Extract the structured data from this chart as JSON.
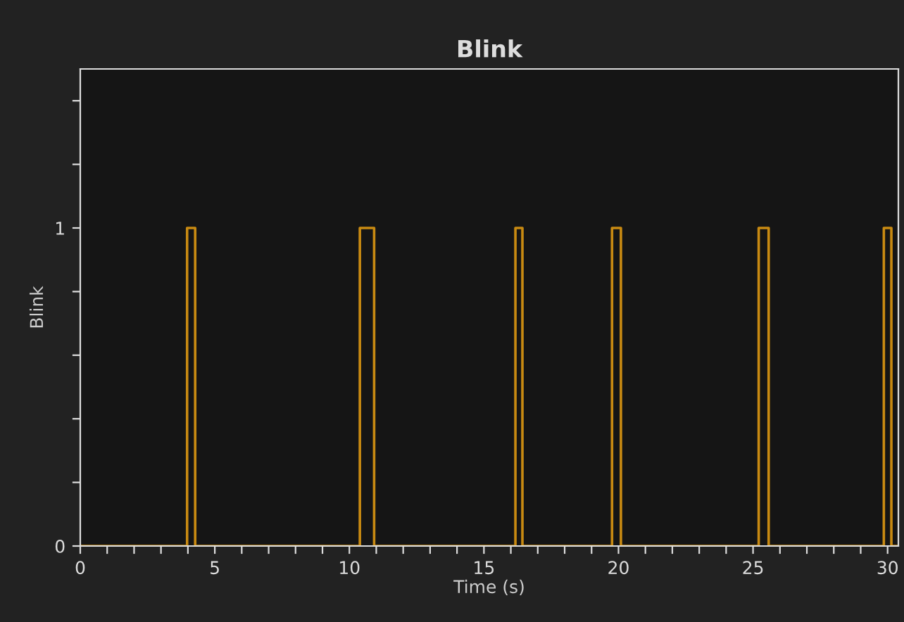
{
  "chart_data": {
    "type": "step",
    "title": "Blink",
    "xlabel": "Time (s)",
    "ylabel": "Blink",
    "x": [
      0,
      3.97,
      4.27,
      10.39,
      10.92,
      16.17,
      16.43,
      19.76,
      20.09,
      25.21,
      25.58,
      29.86,
      30.14,
      30.35
    ],
    "series": [
      {
        "color": "#c88a12",
        "values": [
          0,
          1,
          0,
          1,
          0,
          1,
          0,
          1,
          0,
          1,
          0,
          1,
          0,
          0
        ]
      }
    ],
    "xlim": [
      0,
      30.4
    ],
    "ylim": [
      0,
      1.5
    ],
    "xticks": [
      0,
      {
        "value": 1,
        "label": null
      },
      {
        "value": 2,
        "label": null
      },
      {
        "value": 3,
        "label": null
      },
      {
        "value": 4,
        "label": null
      },
      5,
      {
        "value": 6,
        "label": null
      },
      {
        "value": 7,
        "label": null
      },
      {
        "value": 8,
        "label": null
      },
      {
        "value": 9,
        "label": null
      },
      10,
      {
        "value": 11,
        "label": null
      },
      {
        "value": 12,
        "label": null
      },
      {
        "value": 13,
        "label": null
      },
      {
        "value": 14,
        "label": null
      },
      15,
      {
        "value": 16,
        "label": null
      },
      {
        "value": 17,
        "label": null
      },
      {
        "value": 18,
        "label": null
      },
      {
        "value": 19,
        "label": null
      },
      20,
      {
        "value": 21,
        "label": null
      },
      {
        "value": 22,
        "label": null
      },
      {
        "value": 23,
        "label": null
      },
      {
        "value": 24,
        "label": null
      },
      25,
      {
        "value": 26,
        "label": null
      },
      {
        "value": 27,
        "label": null
      },
      {
        "value": 28,
        "label": null
      },
      {
        "value": 29,
        "label": null
      },
      30
    ],
    "yticks": [
      0,
      {
        "value": 0.2,
        "label": null
      },
      {
        "value": 0.4,
        "label": null
      },
      {
        "value": 0.6,
        "label": null
      },
      {
        "value": 0.8,
        "label": null
      },
      1,
      {
        "value": 1.2,
        "label": null
      },
      {
        "value": 1.4,
        "label": null
      }
    ],
    "grid": false,
    "legend": false
  }
}
